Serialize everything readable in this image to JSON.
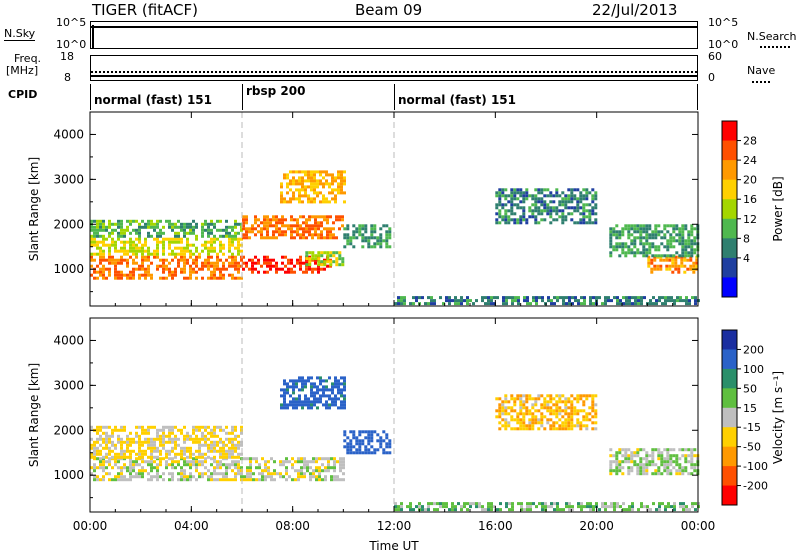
{
  "header": {
    "station": "TIGER (fitACF)",
    "beam": "Beam 09",
    "date": "22/Jul/2013"
  },
  "top_panels": {
    "nsky": {
      "label": "N.Sky",
      "ticks": [
        "10^5",
        "10^0"
      ]
    },
    "nsearch": {
      "label": "N.Search",
      "ticks": [
        "10^5",
        "10^0"
      ]
    },
    "freq": {
      "label_top": "Freq.",
      "label_unit": "[MHz]",
      "ticks": [
        "18",
        "8"
      ]
    },
    "nave": {
      "label": "Nave",
      "ticks": [
        "60",
        "0"
      ]
    },
    "cpid": {
      "label": "CPID"
    }
  },
  "cpid_segments": [
    {
      "start_hour": 0,
      "end_hour": 6,
      "label": "normal (fast) 151"
    },
    {
      "start_hour": 6,
      "end_hour": 12,
      "label": "rbsp 200"
    },
    {
      "start_hour": 12,
      "end_hour": 24,
      "label": "normal (fast) 151"
    }
  ],
  "power_colorbar": {
    "title": "Power [dB]",
    "ticks": [
      "28",
      "24",
      "20",
      "16",
      "12",
      "8",
      "4"
    ],
    "colors": [
      "#ff0000",
      "#ff5000",
      "#ff9900",
      "#ffd000",
      "#a4d600",
      "#4fb84f",
      "#2f7f6f",
      "#1f3fa0",
      "#0000ff"
    ]
  },
  "velocity_colorbar": {
    "title": "Velocity [m s⁻¹]",
    "ticks": [
      "200",
      "100",
      "50",
      "15",
      "-15",
      "-50",
      "-100",
      "-200"
    ],
    "colors": [
      "#1a2ea0",
      "#2a62c8",
      "#2a8f6a",
      "#5fbf3f",
      "#bfbfbf",
      "#ffd000",
      "#ff9900",
      "#ff5000",
      "#ff0000"
    ]
  },
  "chart_data": [
    {
      "type": "heatmap",
      "panel": "Power",
      "xlabel": "Time UT",
      "ylabel": "Slant Range [km]",
      "xlim": [
        0,
        24
      ],
      "ylim": [
        180,
        4500
      ],
      "x_tick_labels": [
        "00:00",
        "04:00",
        "08:00",
        "12:00",
        "16:00",
        "20:00",
        "00:00"
      ],
      "x_ticks_hours": [
        0,
        4,
        8,
        12,
        16,
        20,
        24
      ],
      "y_ticks": [
        1000,
        2000,
        3000,
        4000
      ],
      "regions": [
        {
          "t0": 0.0,
          "t1": 6.0,
          "r0": 800,
          "r1": 1300,
          "power": 24
        },
        {
          "t0": 0.0,
          "t1": 6.0,
          "r0": 1300,
          "r1": 1700,
          "power": 16
        },
        {
          "t0": 0.0,
          "t1": 6.0,
          "r0": 1700,
          "r1": 2100,
          "power": 10
        },
        {
          "t0": 6.0,
          "t1": 9.5,
          "r0": 900,
          "r1": 1300,
          "power": 28
        },
        {
          "t0": 6.0,
          "t1": 10.0,
          "r0": 1700,
          "r1": 2200,
          "power": 24
        },
        {
          "t0": 7.5,
          "t1": 10.0,
          "r0": 2500,
          "r1": 3200,
          "power": 20
        },
        {
          "t0": 8.5,
          "t1": 10.0,
          "r0": 1100,
          "r1": 1400,
          "power": 14
        },
        {
          "t0": 10.0,
          "t1": 11.8,
          "r0": 1500,
          "r1": 2000,
          "power": 8
        },
        {
          "t0": 16.0,
          "t1": 20.0,
          "r0": 2000,
          "r1": 2800,
          "power": 6
        },
        {
          "t0": 22.0,
          "t1": 24.0,
          "r0": 900,
          "r1": 1300,
          "power": 22
        },
        {
          "t0": 20.5,
          "t1": 24.0,
          "r0": 1300,
          "r1": 2000,
          "power": 8
        },
        {
          "t0": 12.0,
          "t1": 24.0,
          "r0": 200,
          "r1": 400,
          "power": 6
        }
      ]
    },
    {
      "type": "heatmap",
      "panel": "Velocity",
      "xlabel": "Time UT",
      "ylabel": "Slant Range [km]",
      "xlim": [
        0,
        24
      ],
      "ylim": [
        180,
        4500
      ],
      "x_tick_labels": [
        "00:00",
        "04:00",
        "08:00",
        "12:00",
        "16:00",
        "20:00",
        "00:00"
      ],
      "x_ticks_hours": [
        0,
        4,
        8,
        12,
        16,
        20,
        24
      ],
      "y_ticks": [
        1000,
        2000,
        3000,
        4000
      ],
      "regions": [
        {
          "t0": 0.0,
          "t1": 10.0,
          "r0": 900,
          "r1": 1400,
          "velocity": 0
        },
        {
          "t0": 0.0,
          "t1": 6.0,
          "r0": 1400,
          "r1": 2100,
          "velocity": -20
        },
        {
          "t0": 7.5,
          "t1": 10.0,
          "r0": 2500,
          "r1": 3200,
          "velocity": 120
        },
        {
          "t0": 10.0,
          "t1": 11.8,
          "r0": 1500,
          "r1": 2000,
          "velocity": 150
        },
        {
          "t0": 16.0,
          "t1": 20.0,
          "r0": 2000,
          "r1": 2800,
          "velocity": -40
        },
        {
          "t0": 20.5,
          "t1": 24.0,
          "r0": 1000,
          "r1": 1600,
          "velocity": 10
        },
        {
          "t0": 12.0,
          "t1": 24.0,
          "r0": 200,
          "r1": 400,
          "velocity": 30
        }
      ]
    }
  ]
}
